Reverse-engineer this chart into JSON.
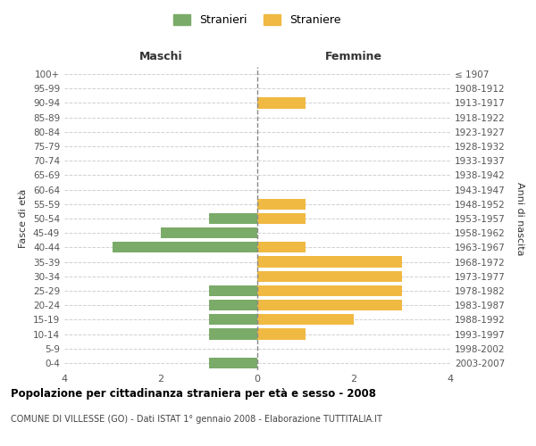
{
  "age_groups": [
    "0-4",
    "5-9",
    "10-14",
    "15-19",
    "20-24",
    "25-29",
    "30-34",
    "35-39",
    "40-44",
    "45-49",
    "50-54",
    "55-59",
    "60-64",
    "65-69",
    "70-74",
    "75-79",
    "80-84",
    "85-89",
    "90-94",
    "95-99",
    "100+"
  ],
  "birth_years": [
    "2003-2007",
    "1998-2002",
    "1993-1997",
    "1988-1992",
    "1983-1987",
    "1978-1982",
    "1973-1977",
    "1968-1972",
    "1963-1967",
    "1958-1962",
    "1953-1957",
    "1948-1952",
    "1943-1947",
    "1938-1942",
    "1933-1937",
    "1928-1932",
    "1923-1927",
    "1918-1922",
    "1913-1917",
    "1908-1912",
    "≤ 1907"
  ],
  "maschi": [
    1,
    0,
    1,
    1,
    1,
    1,
    0,
    0,
    3,
    2,
    1,
    0,
    0,
    0,
    0,
    0,
    0,
    0,
    0,
    0,
    0
  ],
  "femmine": [
    0,
    0,
    1,
    2,
    3,
    3,
    3,
    3,
    1,
    0,
    1,
    1,
    0,
    0,
    0,
    0,
    0,
    0,
    1,
    0,
    0
  ],
  "maschi_color": "#7aab68",
  "femmine_color": "#f0b942",
  "title": "Popolazione per cittadinanza straniera per età e sesso - 2008",
  "subtitle": "COMUNE DI VILLESSE (GO) - Dati ISTAT 1° gennaio 2008 - Elaborazione TUTTITALIA.IT",
  "header_left": "Maschi",
  "header_right": "Femmine",
  "ylabel_left": "Fasce di età",
  "ylabel_right": "Anni di nascita",
  "legend_maschi": "Stranieri",
  "legend_femmine": "Straniere",
  "xlim": 4,
  "background_color": "#ffffff",
  "grid_color": "#d0d0d0",
  "bar_height": 0.75
}
